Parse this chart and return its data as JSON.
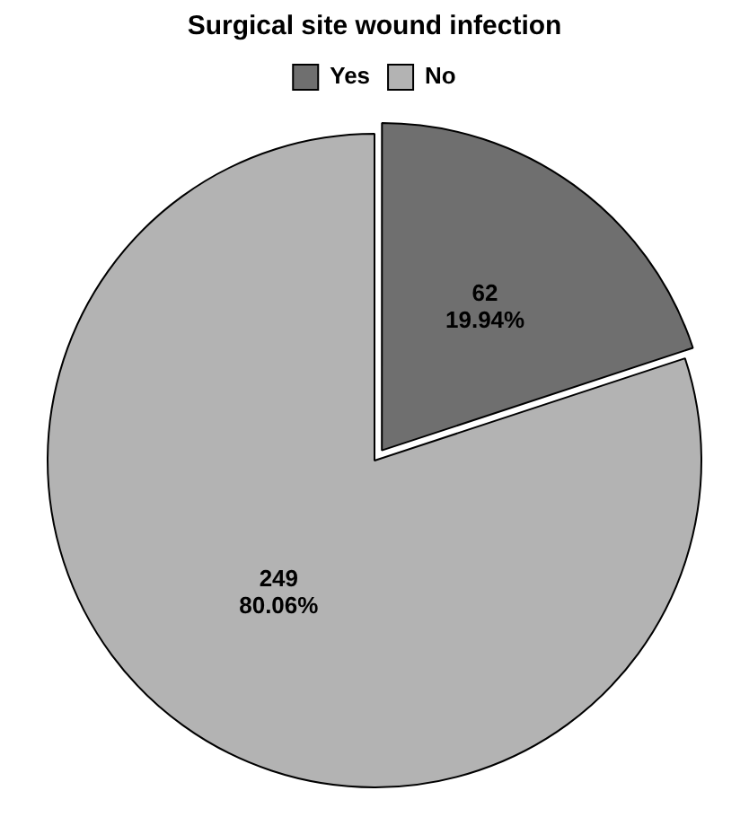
{
  "chart_data": {
    "type": "pie",
    "title": "Surgical site wound infection",
    "categories": [
      "Yes",
      "No"
    ],
    "values": [
      62,
      249
    ],
    "colors": [
      "#6f6f6f",
      "#b3b3b3"
    ],
    "value_labels": [
      "62\n19.94%",
      "249\n80.06%"
    ],
    "legend": "top"
  }
}
